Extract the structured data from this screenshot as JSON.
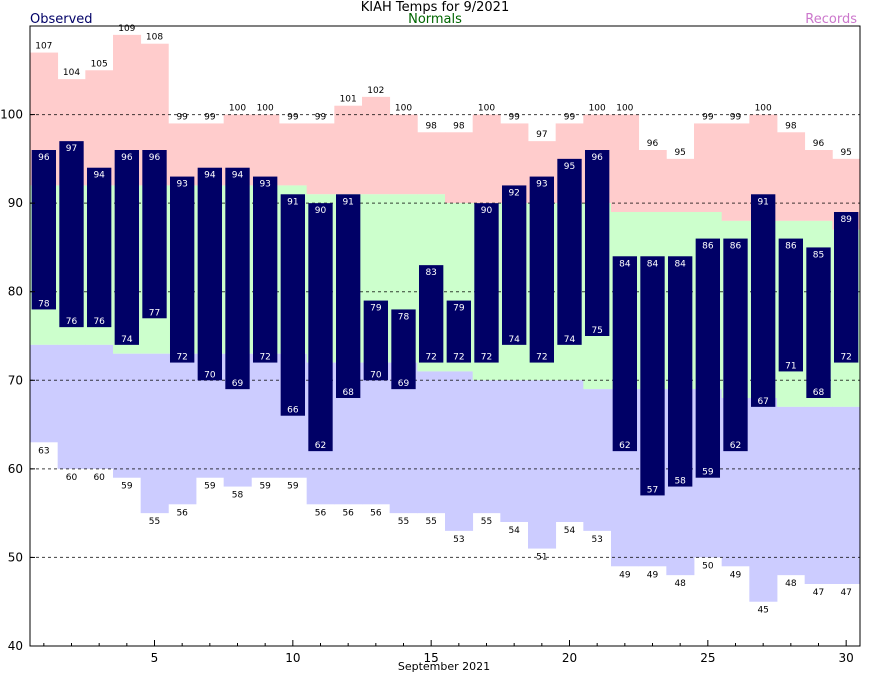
{
  "title": "KIAH Temps for 9/2021",
  "legend": {
    "observed": "Observed",
    "normals": "Normals",
    "records": "Records"
  },
  "colors": {
    "observed_bar": "#000066",
    "record_band": "#ffcccc",
    "normal_band": "#ccffcc",
    "low_band": "#ccccff",
    "observed_text": "#000066",
    "normals_text": "#006600",
    "records_text": "#cc77cc"
  },
  "chart_data": {
    "type": "bar",
    "title": "KIAH Temps for 9/2021",
    "xlabel": "September 2021",
    "ylabel": "",
    "ylim": [
      40,
      110
    ],
    "xlim": [
      0.5,
      30.5
    ],
    "grid": "dashed horizontal at 50, 60, 70, 80, 90, 100",
    "legend": "top: Observed left, Normals center, Records right",
    "xticks": [
      5,
      10,
      15,
      20,
      25,
      30
    ],
    "yticks": [
      40,
      50,
      60,
      70,
      80,
      90,
      100
    ],
    "days": [
      1,
      2,
      3,
      4,
      5,
      6,
      7,
      8,
      9,
      10,
      11,
      12,
      13,
      14,
      15,
      16,
      17,
      18,
      19,
      20,
      21,
      22,
      23,
      24,
      25,
      26,
      27,
      28,
      29,
      30
    ],
    "series": [
      {
        "name": "Observed",
        "kind": "observed_high",
        "values": [
          96,
          97,
          94,
          96,
          96,
          93,
          94,
          94,
          93,
          91,
          90,
          91,
          79,
          78,
          83,
          79,
          90,
          92,
          93,
          95,
          96,
          84,
          84,
          84,
          86,
          86,
          91,
          86,
          85,
          89
        ]
      },
      {
        "name": "Observed",
        "kind": "observed_low",
        "values": [
          78,
          76,
          76,
          74,
          77,
          72,
          70,
          69,
          72,
          66,
          62,
          68,
          70,
          69,
          72,
          72,
          72,
          74,
          72,
          74,
          75,
          62,
          57,
          58,
          59,
          62,
          67,
          71,
          68,
          72
        ]
      },
      {
        "name": "Records",
        "kind": "record_high",
        "values": [
          107,
          104,
          105,
          109,
          108,
          99,
          99,
          100,
          100,
          99,
          99,
          101,
          102,
          100,
          98,
          98,
          100,
          99,
          97,
          99,
          100,
          100,
          96,
          95,
          99,
          99,
          100,
          98,
          96,
          95
        ]
      },
      {
        "name": "Records",
        "kind": "record_low",
        "values": [
          63,
          60,
          60,
          59,
          55,
          56,
          59,
          58,
          59,
          59,
          56,
          56,
          56,
          55,
          55,
          53,
          55,
          54,
          51,
          54,
          53,
          49,
          49,
          48,
          50,
          49,
          45,
          48,
          47,
          47
        ]
      },
      {
        "name": "Normals",
        "kind": "normal_high",
        "values": [
          92,
          92,
          92,
          92,
          92,
          92,
          92,
          92,
          92,
          92,
          91,
          91,
          91,
          91,
          91,
          90,
          90,
          90,
          90,
          90,
          90,
          89,
          89,
          89,
          89,
          88,
          88,
          88,
          88,
          87
        ]
      },
      {
        "name": "Normals",
        "kind": "normal_low",
        "values": [
          74,
          74,
          74,
          73,
          73,
          73,
          73,
          73,
          73,
          73,
          72,
          72,
          72,
          72,
          71,
          71,
          70,
          70,
          70,
          70,
          69,
          69,
          69,
          69,
          69,
          68,
          68,
          67,
          67,
          67
        ]
      }
    ]
  }
}
